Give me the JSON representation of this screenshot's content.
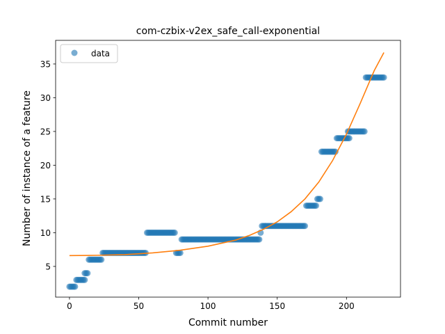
{
  "chart_data": {
    "type": "scatter",
    "title": "com-czbix-v2ex_safe_call-exponential",
    "xlabel": "Commit number",
    "ylabel": "Number of instance of a feature",
    "xlim": [
      -10,
      239
    ],
    "ylim": [
      0.45,
      38.5
    ],
    "xticks": [
      0,
      50,
      100,
      150,
      200
    ],
    "yticks": [
      5,
      10,
      15,
      20,
      25,
      30,
      35
    ],
    "grid": false,
    "legend": {
      "position": "top-left",
      "entries": [
        "data"
      ]
    },
    "colors": {
      "data": "#1f77b4",
      "fit": "#ff7f0e"
    },
    "segments": [
      {
        "x_start": 0,
        "x_end": 4,
        "y": 2
      },
      {
        "x_start": 5,
        "x_end": 11,
        "y": 3
      },
      {
        "x_start": 11,
        "x_end": 13,
        "y": 4
      },
      {
        "x_start": 14,
        "x_end": 23,
        "y": 6
      },
      {
        "x_start": 24,
        "x_end": 55,
        "y": 7
      },
      {
        "x_start": 56,
        "x_end": 76,
        "y": 10
      },
      {
        "x_start": 77,
        "x_end": 80,
        "y": 7
      },
      {
        "x_start": 81,
        "x_end": 137,
        "y": 9
      },
      {
        "x_start": 138,
        "x_end": 138,
        "y": 10
      },
      {
        "x_start": 139,
        "x_end": 170,
        "y": 11
      },
      {
        "x_start": 171,
        "x_end": 178,
        "y": 14
      },
      {
        "x_start": 179,
        "x_end": 181,
        "y": 15
      },
      {
        "x_start": 182,
        "x_end": 192,
        "y": 22
      },
      {
        "x_start": 193,
        "x_end": 202,
        "y": 24
      },
      {
        "x_start": 201,
        "x_end": 213,
        "y": 25
      },
      {
        "x_start": 214,
        "x_end": 227,
        "y": 33
      }
    ],
    "fit": {
      "x": [
        0,
        20,
        40,
        60,
        80,
        100,
        120,
        130,
        140,
        150,
        160,
        170,
        180,
        190,
        200,
        210,
        220,
        227
      ],
      "y": [
        6.6,
        6.65,
        6.75,
        7.0,
        7.4,
        8.0,
        8.9,
        9.6,
        10.5,
        11.6,
        13.1,
        15.0,
        17.5,
        20.7,
        24.6,
        29.2,
        34.0,
        36.7
      ]
    }
  }
}
